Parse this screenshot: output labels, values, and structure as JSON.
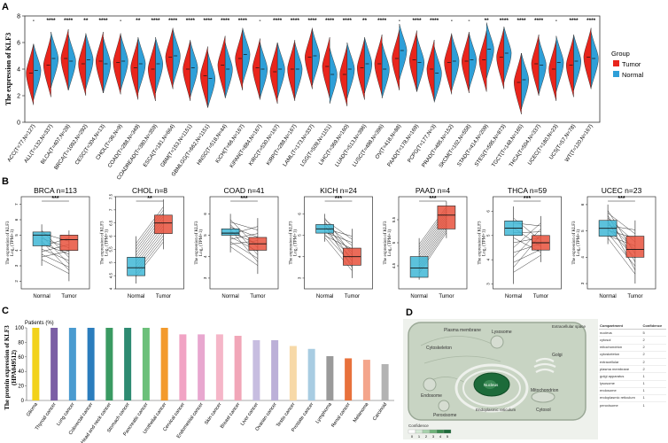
{
  "panel_labels": {
    "a": "A",
    "b": "B",
    "c": "C",
    "d": "D"
  },
  "panel_a": {
    "ylabel": "The expression of KLF3",
    "legend": {
      "title": "Group",
      "tumor": "Tumor",
      "normal": "Normal"
    },
    "colors": {
      "tumor": "#e8251c",
      "normal": "#2e9fd8"
    }
  },
  "panel_b": {
    "ylabel_line1": "The expression of KLF3",
    "ylabel_line2": "Log₂ (TPM+1)",
    "xlabels": [
      "Normal",
      "Tumor"
    ]
  },
  "panel_c": {
    "ylabel_line1": "The protein expression of KLF3",
    "ylabel_line2": "(HPA049512)",
    "patients_label": "Patients (%)"
  },
  "panel_d": {
    "labels": {
      "plasma": "Plasma membrane",
      "lysosome": "Lysosome",
      "extracellular": "Extracellular space",
      "cytoskeleton": "Cytoskeleton",
      "golgi": "Golgi",
      "endosome": "Endosome",
      "nucleus": "Nucleus",
      "mitochondrion": "Mitochondrion",
      "peroxisome": "Peroxisome",
      "er": "Endoplasmic reticulum",
      "cytosol": "Cytosol"
    },
    "confidence_label": "Confidence",
    "confidence_scale": [
      "0",
      "1",
      "2",
      "3",
      "4",
      "5"
    ],
    "table": {
      "headers": [
        "Compartment",
        "Confidence"
      ],
      "rows": [
        [
          "nucleus",
          "5"
        ],
        [
          "cytosol",
          "2"
        ],
        [
          "mitochondrion",
          "2"
        ],
        [
          "cytoskeleton",
          "2"
        ],
        [
          "extracellular",
          "2"
        ],
        [
          "plasma membrane",
          "2"
        ],
        [
          "golgi apparatus",
          "1"
        ],
        [
          "lysosome",
          "1"
        ],
        [
          "endosome",
          "1"
        ],
        [
          "endoplasmic reticulum",
          "1"
        ],
        [
          "peroxisome",
          "1"
        ]
      ]
    }
  },
  "chart_data": [
    {
      "type": "violin",
      "panel": "A",
      "ylabel": "The expression of KLF3",
      "ylim": [
        0,
        8
      ],
      "yticks": [
        0,
        2,
        4,
        6,
        8
      ],
      "categories": [
        "ACC(T=77,N=127)",
        "ALL(T=132,N=337)",
        "BLCA(T=407,N=28)",
        "BRCA(T=1092,N=292)",
        "CESC(T=304,N=13)",
        "CHOL(T=36,N=9)",
        "COAD(T=288,N=349)",
        "COADREAD(T=380,N=359)",
        "ESCA(T=181,N=664)",
        "GBM(T=153,N=1151)",
        "GBMLGG(T=662,N=1151)",
        "HNSC(T=518,N=44)",
        "KICH(T=66,N=167)",
        "KIPAN(T=884,N=167)",
        "KIRC(T=530,N=167)",
        "KIRP(T=288,N=167)",
        "LAML(T=173,N=337)",
        "LGG(T=509,N=1151)",
        "LIHC(T=369,N=160)",
        "LUAD(T=513,N=396)",
        "LUSC(T=498,N=396)",
        "OV(T=418,N=88)",
        "PAAD(T=178,N=169)",
        "PCPG(T=177,N=3)",
        "PRAD(T=495,N=152)",
        "SKCM(T=102,N=558)",
        "STAD(T=414,N=209)",
        "STES(T=595,N=873)",
        "TGCT(T=148,N=165)",
        "THCA(T=504,N=337)",
        "UCEC(T=180,N=23)",
        "UCS(T=57,N=78)",
        "WT(T=120,N=167)"
      ],
      "significance": [
        "-",
        "****",
        "****",
        "**",
        "****",
        "-",
        "**",
        "****",
        "****",
        "****",
        "****",
        "****",
        "****",
        "-",
        "****",
        "****",
        "****",
        "****",
        "****",
        "**",
        "****",
        "-",
        "****",
        "****",
        "-",
        "-",
        "**",
        "****",
        "****",
        "****",
        "-",
        "****",
        "****"
      ],
      "series": [
        {
          "name": "Tumor",
          "values": [
            3.7,
            4.3,
            4.8,
            4.4,
            4.6,
            4.5,
            4.1,
            4.0,
            4.9,
            4.0,
            3.5,
            4.3,
            4.8,
            4.1,
            3.8,
            4.0,
            4.9,
            4.2,
            3.6,
            4.1,
            4.4,
            4.8,
            4.7,
            4.0,
            4.5,
            4.6,
            4.7,
            4.9,
            3.0,
            4.4,
            4.0,
            4.3,
            4.9
          ]
        },
        {
          "name": "Normal",
          "values": [
            3.9,
            4.8,
            4.6,
            4.7,
            4.4,
            4.6,
            4.4,
            4.4,
            5.0,
            4.1,
            3.3,
            4.0,
            5.1,
            4.0,
            4.0,
            4.0,
            5.0,
            3.6,
            4.0,
            4.4,
            4.0,
            5.4,
            4.5,
            3.7,
            4.6,
            4.7,
            5.5,
            5.2,
            3.2,
            4.3,
            4.5,
            4.6,
            4.8
          ]
        }
      ]
    },
    {
      "type": "paired-box",
      "panel": "B",
      "xlabels": [
        "Normal",
        "Tumor"
      ],
      "plots": [
        {
          "title": "BRCA n=113",
          "sig": "***",
          "ylim": [
            1.5,
            7.5
          ],
          "yticks": [
            2,
            3,
            4,
            5,
            6,
            7
          ],
          "normal": [
            3.0,
            4.3,
            5.0,
            5.2,
            5.7,
            6.4
          ],
          "tumor": [
            2.0,
            4.0,
            4.7,
            5.0,
            5.3,
            6.0
          ],
          "tumor_higher": false
        },
        {
          "title": "CHOL n=8",
          "sig": "**",
          "ylim": [
            4.0,
            7.5
          ],
          "yticks": [
            4.0,
            4.5,
            5.0,
            5.5,
            6.0,
            6.5,
            7.0,
            7.5
          ],
          "normal": [
            4.2,
            4.5,
            4.8,
            5.2,
            6.0
          ],
          "tumor": [
            5.5,
            6.1,
            6.5,
            6.8,
            7.4
          ],
          "tumor_higher": true
        },
        {
          "title": "COAD n=41",
          "sig": "***",
          "ylim": [
            2.5,
            6.8
          ],
          "yticks": [
            3,
            4,
            5,
            6
          ],
          "normal": [
            4.2,
            5.0,
            5.1,
            5.3,
            6.0
          ],
          "tumor": [
            3.2,
            4.3,
            4.6,
            4.9,
            5.8
          ],
          "tumor_higher": false
        },
        {
          "title": "KICH n=24",
          "sig": "***",
          "ylim": [
            2.5,
            6.8
          ],
          "yticks": [
            3,
            4,
            5,
            6
          ],
          "normal": [
            4.7,
            5.1,
            5.3,
            5.5,
            6.0
          ],
          "tumor": [
            3.0,
            3.6,
            4.0,
            4.4,
            5.3
          ],
          "tumor_higher": false
        },
        {
          "title": "PAAD n=4",
          "sig": "***",
          "ylim": [
            4.0,
            6.0
          ],
          "yticks": [
            4.5,
            5.0,
            5.5
          ],
          "normal": [
            4.2,
            4.25,
            4.45,
            4.7,
            5.1
          ],
          "tumor": [
            5.1,
            5.3,
            5.6,
            5.8,
            5.9
          ],
          "tumor_higher": true
        },
        {
          "title": "THCA n=59",
          "sig": "***",
          "ylim": [
            2.8,
            6.6
          ],
          "yticks": [
            3,
            4,
            5,
            6
          ],
          "normal": [
            3.0,
            5.0,
            5.3,
            5.6,
            6.2
          ],
          "tumor": [
            3.9,
            4.4,
            4.7,
            5.0,
            5.8
          ],
          "tumor_higher": false
        },
        {
          "title": "UCEC n=23",
          "sig": "***",
          "ylim": [
            2.8,
            6.3
          ],
          "yticks": [
            3,
            4,
            5,
            6
          ],
          "normal": [
            4.5,
            4.8,
            5.1,
            5.4,
            6.0
          ],
          "tumor": [
            3.0,
            4.0,
            4.3,
            4.8,
            5.4
          ],
          "tumor_higher": false
        }
      ]
    },
    {
      "type": "bar",
      "panel": "C",
      "ylabel": "The protein expression of KLF3 (HPA049512)",
      "ylim": [
        0,
        100
      ],
      "yticks": [
        0,
        20,
        40,
        60,
        80,
        100
      ],
      "categories": [
        "Glioma",
        "Thyroid cancer",
        "Lung cancer",
        "Colorectal cancer",
        "Head and neck cancer",
        "Stomach cancer",
        "Pancreatic cancer",
        "Urothelial cancer",
        "Cervical cancer",
        "Endometrial cancer",
        "Skin cancer",
        "Breast cancer",
        "Liver cancer",
        "Ovarian cancer",
        "Testis cancer",
        "Prostate cancer",
        "Lymphoma",
        "Renal cancer",
        "Melanoma",
        "Carcinoid"
      ],
      "values": [
        100,
        100,
        100,
        100,
        100,
        100,
        100,
        100,
        91,
        91,
        91,
        89,
        83,
        83,
        75,
        71,
        61,
        58,
        56,
        50
      ],
      "colors": [
        "#f2d21a",
        "#7b5fa5",
        "#4a9bd0",
        "#2b7dbd",
        "#3a9a62",
        "#2e8b72",
        "#6cc07a",
        "#f39a2c",
        "#f1a3c4",
        "#e8a7cf",
        "#f5b6c8",
        "#f1a6b8",
        "#c7bde0",
        "#bcb0d8",
        "#f7d9a8",
        "#a8cce2",
        "#9a9a9a",
        "#e8713c",
        "#f4a58b",
        "#b3b3b3"
      ]
    }
  ]
}
